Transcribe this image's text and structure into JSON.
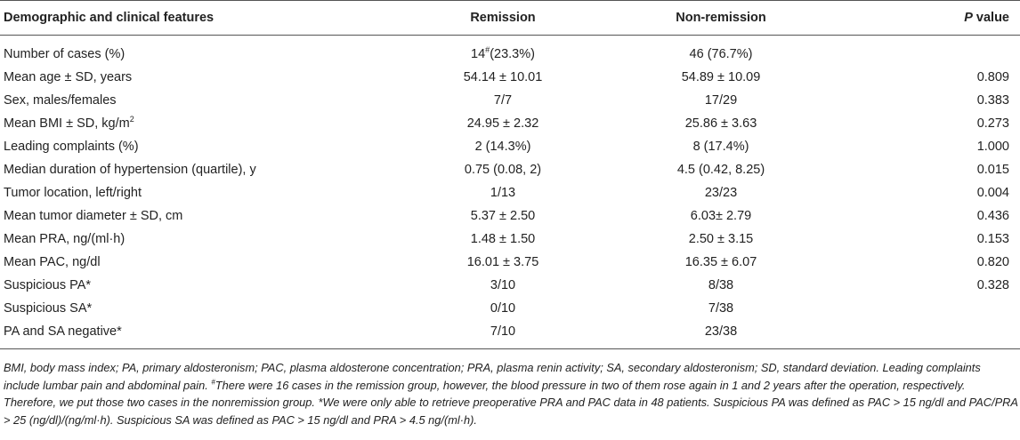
{
  "table": {
    "headers": {
      "feature": "Demographic and clinical features",
      "remission": "Remission",
      "non_remission": "Non-remission",
      "p_letter": "P",
      "p_suffix": " value"
    },
    "rows": [
      {
        "feature": "Number of cases (%)",
        "remission_pre": "14",
        "remission_sup": "#",
        "remission_post": "(23.3%)",
        "non_remission": "46 (76.7%)",
        "p": ""
      },
      {
        "feature": "Mean age ± SD, years",
        "remission": "54.14 ± 10.01",
        "non_remission": "54.89 ± 10.09",
        "p": "0.809"
      },
      {
        "feature": "Sex, males/females",
        "remission": "7/7",
        "non_remission": "17/29",
        "p": "0.383"
      },
      {
        "feature_pre": "Mean BMI ± SD, kg/m",
        "feature_sup": "2",
        "remission": "24.95 ± 2.32",
        "non_remission": "25.86 ± 3.63",
        "p": "0.273"
      },
      {
        "feature": "Leading complaints (%)",
        "remission": "2 (14.3%)",
        "non_remission": "8 (17.4%)",
        "p": "1.000"
      },
      {
        "feature": "Median duration of hypertension (quartile), y",
        "remission": "0.75 (0.08, 2)",
        "non_remission": "4.5 (0.42, 8.25)",
        "p": "0.015"
      },
      {
        "feature": "Tumor location, left/right",
        "remission": "1/13",
        "non_remission": "23/23",
        "p": "0.004"
      },
      {
        "feature": "Mean tumor diameter ± SD, cm",
        "remission": "5.37 ± 2.50",
        "non_remission": "6.03± 2.79",
        "p": "0.436"
      },
      {
        "feature": "Mean PRA, ng/(ml·h)",
        "remission": "1.48 ± 1.50",
        "non_remission": "2.50 ± 3.15",
        "p": "0.153"
      },
      {
        "feature": "Mean PAC, ng/dl",
        "remission": "16.01 ± 3.75",
        "non_remission": "16.35 ± 6.07",
        "p": "0.820"
      },
      {
        "feature": "Suspicious PA*",
        "remission": "3/10",
        "non_remission": "8/38",
        "p": "0.328"
      },
      {
        "feature": "Suspicious SA*",
        "remission": "0/10",
        "non_remission": "7/38",
        "p": ""
      },
      {
        "feature": "PA and SA negative*",
        "remission": "7/10",
        "non_remission": "23/38",
        "p": ""
      }
    ]
  },
  "footnote": {
    "part1": "BMI, body mass index; PA, primary aldosteronism; PAC, plasma aldosterone concentration; PRA, plasma renin activity; SA, secondary aldosteronism; SD, standard deviation. Leading complaints include lumbar pain and abdominal pain. ",
    "hash_sup": "#",
    "part2": "There were 16 cases in the remission group, however, the blood pressure in two of them rose again in 1 and 2 years after the operation, respectively. Therefore, we put those two cases in the nonremission group. *We were only able to retrieve preoperative PRA and PAC data in 48 patients. Suspicious PA was defined as PAC > 15 ng/dl and PAC/PRA > 25 (ng/dl)/(ng/ml·h). Suspicious SA was defined as PAC > 15 ng/dl and PRA > 4.5 ng/(ml·h)."
  }
}
